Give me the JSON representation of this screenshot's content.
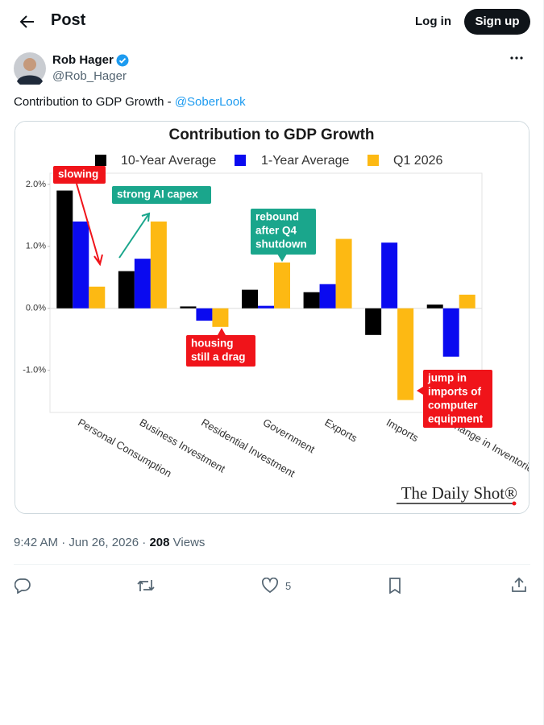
{
  "header": {
    "title": "Post",
    "login": "Log in",
    "signup": "Sign up"
  },
  "author": {
    "name": "Rob Hager",
    "handle": "@Rob_Hager"
  },
  "post": {
    "text": "Contribution to GDP Growth - ",
    "mention": "@SoberLook",
    "timestamp": "9:42 AM · Jun 26, 2026",
    "separator": "·",
    "views": 208,
    "views_label": "Views",
    "likes": 5
  },
  "chart_data": {
    "type": "bar",
    "title": "Contribution to GDP Growth",
    "categories": [
      "Personal Consumption",
      "Business Investment",
      "Residential Investment",
      "Government",
      "Exports",
      "Imports",
      "Change in Inventories"
    ],
    "series": [
      {
        "name": "10-Year Average",
        "color": "#000000",
        "values": [
          1.9,
          0.6,
          0.03,
          0.3,
          0.26,
          -0.43,
          0.06
        ]
      },
      {
        "name": "1-Year Average",
        "color": "#0a0af0",
        "values": [
          1.4,
          0.8,
          -0.2,
          0.04,
          0.39,
          1.06,
          -0.78
        ]
      },
      {
        "name": "Q1 2026",
        "color": "#fdb913",
        "values": [
          0.35,
          1.4,
          -0.3,
          0.74,
          1.12,
          -1.48,
          0.22
        ]
      }
    ],
    "ylim": [
      -1.68,
      2.18
    ],
    "yticks": [
      {
        "value": 2,
        "label": "2.0%"
      },
      {
        "value": 1,
        "label": "1.0%"
      },
      {
        "value": 0,
        "label": "0.0%"
      },
      {
        "value": -1,
        "label": "-1.0%"
      }
    ],
    "annotations": [
      {
        "text": [
          "slowing"
        ],
        "color": "#f0141a"
      },
      {
        "text": [
          "strong AI capex"
        ],
        "color": "#1aa68c"
      },
      {
        "text": [
          "rebound",
          "after Q4",
          "shutdown"
        ],
        "color": "#1aa68c"
      },
      {
        "text": [
          "housing",
          "still a drag"
        ],
        "color": "#f0141a"
      },
      {
        "text": [
          "jump in",
          "imports of",
          "computer",
          "equipment"
        ],
        "color": "#f0141a"
      }
    ],
    "source": "The Daily Shot®"
  }
}
